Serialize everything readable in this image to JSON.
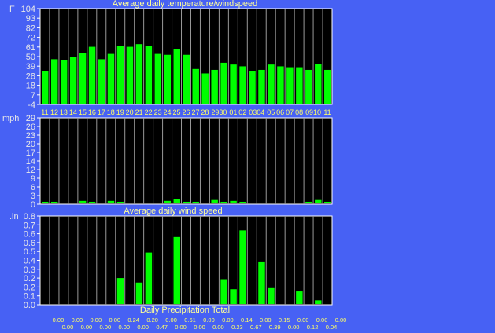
{
  "colors": {
    "background": "#4761f4",
    "plot": "#000000",
    "bar": "#00ff00",
    "axis_text": "#e8e8e8",
    "x_label_text": "#ffff66",
    "title_text": "#ffff99"
  },
  "chart_data": [
    {
      "type": "bar",
      "title": "Average daily temperature/windspeed",
      "ylabel": "F",
      "ylim": [
        -4,
        104
      ],
      "yticks": [
        "104",
        "93",
        "82",
        "72",
        "61",
        "50",
        "39",
        "28",
        "18",
        "7",
        "-4"
      ],
      "categories": [
        "11",
        "12",
        "13",
        "14",
        "15",
        "16",
        "17",
        "18",
        "19",
        "20",
        "21",
        "22",
        "23",
        "24",
        "25",
        "26",
        "27",
        "28",
        "29",
        "30",
        "01",
        "02",
        "03",
        "04",
        "05",
        "06",
        "07",
        "08",
        "09",
        "10",
        "11"
      ],
      "category_labels": [
        "11",
        "12",
        "13",
        "14",
        "15",
        "16",
        "17",
        "18",
        "19",
        "20",
        "21",
        "22",
        "23",
        "24",
        "25",
        "26",
        "27",
        "28",
        "2930",
        "",
        "01",
        "02",
        "0304",
        "",
        "05",
        "06",
        "07",
        "08",
        "0910",
        "",
        "11"
      ],
      "values": [
        34,
        47,
        46,
        50,
        54,
        61,
        47,
        53,
        62,
        61,
        64,
        62,
        53,
        52,
        58,
        52,
        36,
        31,
        35,
        43,
        41,
        39,
        34,
        35,
        41,
        39,
        38,
        38,
        35,
        42,
        35
      ],
      "grid": true
    },
    {
      "type": "bar",
      "title": "Average daily wind speed",
      "ylabel": "mph",
      "ylim": [
        0,
        29
      ],
      "yticks": [
        "29",
        "26",
        "23",
        "20",
        "17",
        "14",
        "12",
        "9",
        "6",
        "3",
        "0"
      ],
      "values": [
        0.8,
        0.8,
        0.5,
        0.5,
        1.1,
        0.8,
        0.5,
        1.1,
        0.8,
        0,
        0.5,
        0.5,
        0.5,
        1.1,
        1.7,
        0.8,
        0.8,
        0.5,
        1.4,
        0.8,
        1.1,
        0.8,
        0.5,
        0,
        0,
        0,
        0.5,
        0,
        0.8,
        1.4,
        0.8
      ],
      "grid": true
    },
    {
      "type": "bar",
      "title": "Daily Precipitation Total",
      "ylabel": ".in",
      "ylim": [
        0,
        0.8
      ],
      "yticks": [
        "0.8",
        "0.7",
        "0.6",
        "0.6",
        "0.5",
        "0.4",
        "0.3",
        "0.2",
        "0.2",
        "0.1",
        "0.0"
      ],
      "values": [
        0.0,
        0.0,
        0.0,
        0.0,
        0.0,
        0.0,
        0.0,
        0.0,
        0.24,
        0.0,
        0.2,
        0.47,
        0.0,
        0.0,
        0.61,
        0.0,
        0.0,
        0.0,
        0.0,
        0.23,
        0.14,
        0.67,
        0.0,
        0.39,
        0.15,
        0.0,
        0.0,
        0.12,
        0.0,
        0.04,
        0.0
      ],
      "value_labels": [
        "0.00",
        "0.00",
        "0.00",
        "0.00",
        "0.00",
        "0.00",
        "0.00",
        "0.00",
        "0.24",
        "0.00",
        "0.20",
        "0.47",
        "0.00",
        "0.00",
        "0.61",
        "0.00",
        "0.00",
        "0.00",
        "0.00",
        "0.23",
        "0.14",
        "0.67",
        "0.00",
        "0.39",
        "0.15",
        "0.00",
        "0.00",
        "0.12",
        "0.00",
        "0.04",
        "0.00"
      ],
      "grid": true
    }
  ]
}
